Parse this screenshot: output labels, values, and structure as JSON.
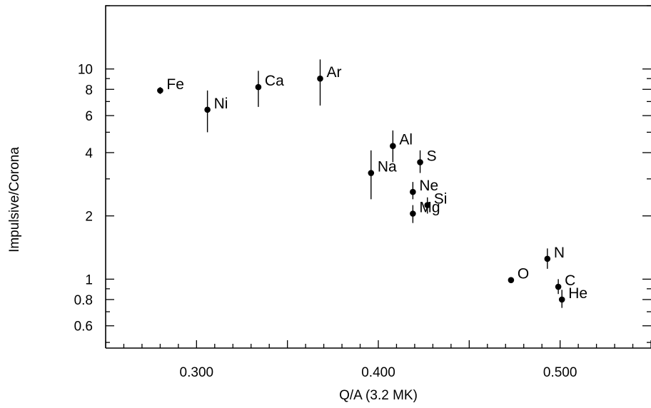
{
  "chart_data": {
    "type": "scatter",
    "title": "",
    "xlabel": "Q/A (3.2 MK)",
    "ylabel": "Impulsive/Corona",
    "xlim": [
      0.25,
      0.55
    ],
    "ylim": [
      0.47,
      20
    ],
    "yscale": "log",
    "grid": false,
    "x_ticks": [
      0.3,
      0.4,
      0.5
    ],
    "x_tick_labels": [
      "0.300",
      "0.400",
      "0.500"
    ],
    "y_ticks": [
      0.6,
      0.8,
      1,
      2,
      4,
      6,
      8,
      10
    ],
    "y_tick_labels": [
      "0.6",
      "0.8",
      "1",
      "2",
      "4",
      "6",
      "8",
      "10"
    ],
    "points": [
      {
        "label": "Fe",
        "x": 0.28,
        "y": 7.9,
        "err": [
          7.6,
          8.2
        ]
      },
      {
        "label": "Ni",
        "x": 0.306,
        "y": 6.4,
        "err": [
          5.0,
          7.9
        ]
      },
      {
        "label": "Ca",
        "x": 0.334,
        "y": 8.2,
        "err": [
          6.6,
          9.8
        ]
      },
      {
        "label": "Ar",
        "x": 0.368,
        "y": 9.0,
        "err": [
          6.7,
          11.1
        ]
      },
      {
        "label": "Na",
        "x": 0.396,
        "y": 3.2,
        "err": [
          2.4,
          4.1
        ]
      },
      {
        "label": "Al",
        "x": 0.408,
        "y": 4.3,
        "err": [
          3.6,
          5.1
        ]
      },
      {
        "label": "S",
        "x": 0.423,
        "y": 3.6,
        "err": [
          3.2,
          4.1
        ]
      },
      {
        "label": "Ne",
        "x": 0.419,
        "y": 2.6,
        "err": [
          2.4,
          2.9
        ]
      },
      {
        "label": "Si",
        "x": 0.427,
        "y": 2.25,
        "err": [
          2.05,
          2.45
        ]
      },
      {
        "label": "Mg",
        "x": 0.419,
        "y": 2.05,
        "err": [
          1.85,
          2.25
        ]
      },
      {
        "label": "O",
        "x": 0.473,
        "y": 0.99,
        "err": [
          0.98,
          1.0
        ]
      },
      {
        "label": "N",
        "x": 0.493,
        "y": 1.25,
        "err": [
          1.12,
          1.4
        ]
      },
      {
        "label": "C",
        "x": 0.499,
        "y": 0.92,
        "err": [
          0.85,
          1.0
        ]
      },
      {
        "label": "He",
        "x": 0.501,
        "y": 0.8,
        "err": [
          0.73,
          0.89
        ]
      }
    ]
  }
}
